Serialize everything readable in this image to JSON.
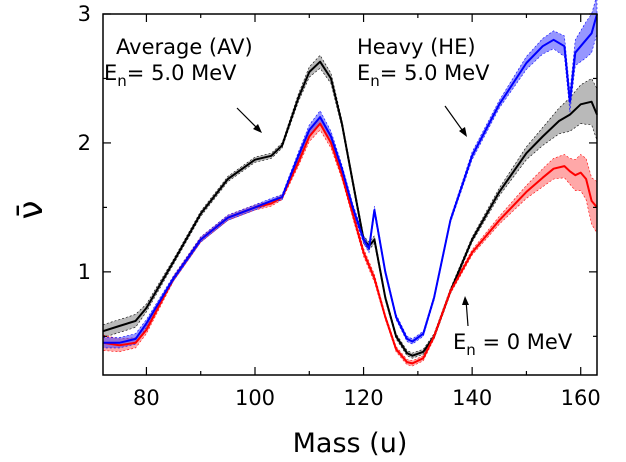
{
  "chart_data": {
    "type": "line",
    "title": "",
    "xlabel": "Mass (u)",
    "ylabel": "ν̄",
    "xlim": [
      72,
      163
    ],
    "ylim": [
      0.2,
      3.0
    ],
    "x_ticks": [
      80,
      100,
      120,
      140,
      160
    ],
    "y_ticks": [
      1,
      2,
      3
    ],
    "grid": false,
    "legend": "none",
    "annotations": [
      {
        "id": "av",
        "line1": "Average (AV)",
        "line2_main": "E",
        "line2_sub": "n",
        "line2_rest": "= 5.0 MeV"
      },
      {
        "id": "he",
        "line1": "Heavy (HE)",
        "line2_main": "E",
        "line2_sub": "n",
        "line2_rest": "= 5.0 MeV"
      },
      {
        "id": "zero",
        "line2_main": "E",
        "line2_sub": "n",
        "line2_rest": " = 0 MeV"
      }
    ],
    "series": [
      {
        "color": "#000000",
        "band_color": "#808080",
        "x": [
          72,
          75,
          78,
          80,
          85,
          90,
          95,
          100,
          103,
          105,
          108,
          110,
          112,
          114,
          116,
          118,
          120,
          121,
          122,
          124,
          126,
          128,
          129,
          131,
          133,
          136,
          140,
          145,
          150,
          153,
          156,
          158,
          160,
          162,
          163
        ],
        "y": [
          0.54,
          0.58,
          0.62,
          0.72,
          1.08,
          1.45,
          1.72,
          1.87,
          1.9,
          1.98,
          2.35,
          2.55,
          2.63,
          2.5,
          2.15,
          1.7,
          1.25,
          1.2,
          1.25,
          0.8,
          0.5,
          0.37,
          0.35,
          0.38,
          0.5,
          0.85,
          1.25,
          1.62,
          1.92,
          2.05,
          2.17,
          2.22,
          2.3,
          2.32,
          2.22
        ],
        "err": [
          0.05,
          0.05,
          0.05,
          0.03,
          0.02,
          0.02,
          0.02,
          0.02,
          0.02,
          0.02,
          0.03,
          0.04,
          0.05,
          0.04,
          0.03,
          0.03,
          0.03,
          0.03,
          0.03,
          0.02,
          0.02,
          0.02,
          0.02,
          0.02,
          0.02,
          0.02,
          0.02,
          0.03,
          0.05,
          0.07,
          0.1,
          0.13,
          0.15,
          0.18,
          0.2
        ]
      },
      {
        "color": "#0000ff",
        "band_color": "#4040ff",
        "x": [
          72,
          75,
          78,
          80,
          85,
          90,
          95,
          100,
          103,
          105,
          108,
          110,
          112,
          114,
          116,
          118,
          120,
          121,
          122,
          124,
          126,
          128,
          129,
          131,
          133,
          136,
          140,
          145,
          150,
          153,
          155,
          157,
          158,
          159,
          160,
          161,
          162,
          163
        ],
        "y": [
          0.45,
          0.45,
          0.48,
          0.6,
          0.95,
          1.25,
          1.42,
          1.5,
          1.55,
          1.58,
          1.9,
          2.1,
          2.2,
          2.05,
          1.8,
          1.5,
          1.25,
          1.18,
          1.48,
          1.0,
          0.65,
          0.48,
          0.46,
          0.52,
          0.8,
          1.4,
          1.9,
          2.3,
          2.62,
          2.75,
          2.8,
          2.75,
          2.32,
          2.7,
          2.75,
          2.8,
          2.85,
          3.0
        ],
        "err": [
          0.04,
          0.04,
          0.04,
          0.03,
          0.02,
          0.02,
          0.02,
          0.02,
          0.02,
          0.02,
          0.03,
          0.04,
          0.05,
          0.04,
          0.03,
          0.03,
          0.03,
          0.03,
          0.03,
          0.02,
          0.02,
          0.02,
          0.02,
          0.02,
          0.02,
          0.02,
          0.03,
          0.03,
          0.05,
          0.06,
          0.07,
          0.08,
          0.08,
          0.1,
          0.12,
          0.14,
          0.15,
          0.15
        ]
      },
      {
        "color": "#ff0000",
        "band_color": "#ff6060",
        "x": [
          72,
          75,
          78,
          80,
          85,
          90,
          95,
          100,
          103,
          105,
          108,
          110,
          112,
          114,
          116,
          118,
          120,
          121,
          122,
          124,
          126,
          128,
          129,
          131,
          133,
          136,
          140,
          145,
          150,
          153,
          155,
          157,
          158,
          159,
          160,
          161,
          162,
          163
        ],
        "y": [
          0.45,
          0.43,
          0.45,
          0.55,
          0.95,
          1.25,
          1.42,
          1.5,
          1.53,
          1.58,
          1.85,
          2.05,
          2.15,
          2.0,
          1.75,
          1.45,
          1.15,
          1.05,
          0.95,
          0.65,
          0.4,
          0.3,
          0.29,
          0.33,
          0.5,
          0.85,
          1.15,
          1.4,
          1.62,
          1.73,
          1.8,
          1.82,
          1.78,
          1.75,
          1.77,
          1.72,
          1.55,
          1.5
        ],
        "err": [
          0.06,
          0.05,
          0.04,
          0.03,
          0.02,
          0.02,
          0.02,
          0.02,
          0.02,
          0.02,
          0.03,
          0.04,
          0.05,
          0.04,
          0.03,
          0.03,
          0.03,
          0.03,
          0.03,
          0.02,
          0.02,
          0.02,
          0.02,
          0.02,
          0.02,
          0.02,
          0.02,
          0.03,
          0.05,
          0.07,
          0.08,
          0.09,
          0.1,
          0.12,
          0.14,
          0.16,
          0.18,
          0.2
        ]
      }
    ]
  }
}
